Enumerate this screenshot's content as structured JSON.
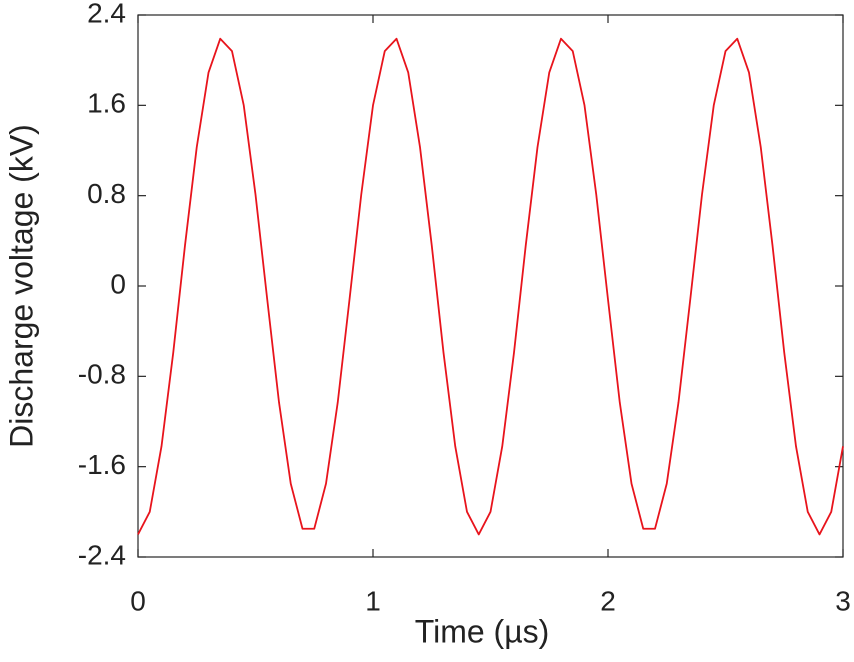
{
  "chart_data": {
    "type": "line",
    "xlabel": "Time (µs)",
    "ylabel": "Discharge voltage (kV)",
    "x": [
      0,
      0.05,
      0.1,
      0.15,
      0.2,
      0.25,
      0.3,
      0.35,
      0.4,
      0.45,
      0.5,
      0.55,
      0.6,
      0.65,
      0.7,
      0.75,
      0.8,
      0.85,
      0.9,
      0.95,
      1,
      1.05,
      1.1,
      1.15,
      1.2,
      1.25,
      1.3,
      1.35,
      1.4,
      1.45,
      1.5,
      1.55,
      1.6,
      1.65,
      1.7,
      1.75,
      1.8,
      1.85,
      1.9,
      1.95,
      2,
      2.05,
      2.1,
      2.15,
      2.2,
      2.25,
      2.3,
      2.35,
      2.4,
      2.45,
      2.5,
      2.55,
      2.6,
      2.65,
      2.7,
      2.75,
      2.8,
      2.85,
      2.9,
      2.95,
      3
    ],
    "values": [
      -2.2,
      -2.0,
      -1.42,
      -0.59,
      0.36,
      1.23,
      1.89,
      2.19,
      2.08,
      1.6,
      0.81,
      -0.12,
      -1.03,
      -1.75,
      -2.15,
      -2.15,
      -1.75,
      -1.03,
      -0.12,
      0.81,
      1.6,
      2.08,
      2.19,
      1.89,
      1.23,
      0.36,
      -0.59,
      -1.42,
      -2.0,
      -2.2,
      -2.0,
      -1.42,
      -0.59,
      0.36,
      1.23,
      1.89,
      2.19,
      2.08,
      1.6,
      0.81,
      -0.12,
      -1.03,
      -1.75,
      -2.15,
      -2.15,
      -1.75,
      -1.03,
      -0.12,
      0.81,
      1.6,
      2.08,
      2.19,
      1.89,
      1.23,
      0.36,
      -0.59,
      -1.42,
      -2.0,
      -2.2,
      -2.0,
      -1.42
    ],
    "color": "#e8141c",
    "xlim": [
      0,
      3
    ],
    "xticks": [
      0,
      1,
      2,
      3
    ],
    "ylim": [
      -2.4,
      2.4
    ],
    "yticks": [
      -2.4,
      -1.6,
      -0.8,
      0,
      0.8,
      1.6,
      2.4
    ],
    "grid": false
  }
}
